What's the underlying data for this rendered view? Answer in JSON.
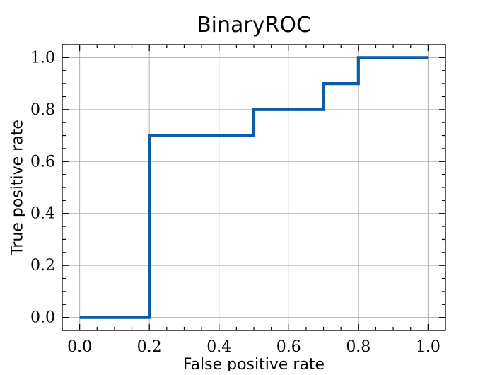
{
  "chart_data": {
    "type": "line",
    "title": "BinaryROC",
    "xlabel": "False positive rate",
    "ylabel": "True positive rate",
    "xlim": [
      -0.05,
      1.05
    ],
    "ylim": [
      -0.05,
      1.05
    ],
    "grid": true,
    "x_ticks": [
      0.0,
      0.2,
      0.4,
      0.6,
      0.8,
      1.0
    ],
    "y_ticks": [
      0.0,
      0.2,
      0.4,
      0.6,
      0.8,
      1.0
    ],
    "x_tick_labels": [
      "0.0",
      "0.2",
      "0.4",
      "0.6",
      "0.8",
      "1.0"
    ],
    "y_tick_labels": [
      "0.0",
      "0.2",
      "0.4",
      "0.6",
      "0.8",
      "1.0"
    ],
    "line_color": "#0C5DA5",
    "series": [
      {
        "x": [
          0.0,
          0.2,
          0.2,
          0.5,
          0.5,
          0.7,
          0.7,
          0.8,
          0.8,
          1.0
        ],
        "y": [
          0.0,
          0.0,
          0.7,
          0.7,
          0.8,
          0.8,
          0.9,
          0.9,
          1.0,
          1.0
        ]
      }
    ]
  }
}
